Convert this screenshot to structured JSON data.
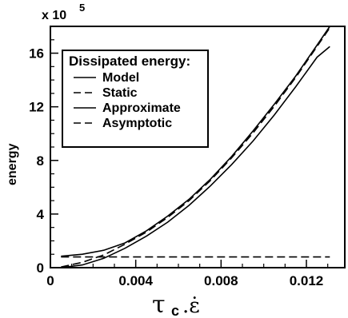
{
  "chart_data": {
    "type": "line",
    "title": "",
    "xlabel": "τ c .ε̇",
    "xlabel_parts": {
      "main": "τ",
      "sub": "c",
      "rest": ".ε̇"
    },
    "ylabel": "energy",
    "y_multiplier": "x 10",
    "y_multiplier_exp": "5",
    "xlim": [
      0,
      0.0138
    ],
    "ylim": [
      0,
      18
    ],
    "x_ticks": [
      0,
      0.004,
      0.008,
      0.012
    ],
    "x_tick_labels": [
      "0",
      "0.004",
      "0.008",
      "0.012"
    ],
    "y_ticks": [
      0,
      4,
      8,
      12,
      16
    ],
    "y_tick_labels": [
      "0",
      "4",
      "8",
      "12",
      "16"
    ],
    "legend": {
      "title": "Dissipated energy:",
      "placement": "top-left"
    },
    "series": [
      {
        "name": "Model",
        "style": "solid",
        "x": [
          0.0005,
          0.0015,
          0.0025,
          0.0035,
          0.0045,
          0.0055,
          0.0065,
          0.0075,
          0.0085,
          0.0095,
          0.0105,
          0.0115,
          0.0125,
          0.0131
        ],
        "y": [
          0.85,
          1.0,
          1.3,
          1.85,
          2.75,
          3.85,
          5.1,
          6.6,
          8.3,
          10.2,
          12.2,
          14.3,
          16.6,
          18.0
        ]
      },
      {
        "name": "Static",
        "style": "dashed",
        "x": [
          0.0005,
          0.0015,
          0.0025,
          0.0035,
          0.0045,
          0.0055,
          0.0065,
          0.0075,
          0.0085,
          0.0095,
          0.0105,
          0.0115,
          0.0125,
          0.0131
        ],
        "y": [
          0.05,
          0.4,
          0.95,
          1.75,
          2.65,
          3.75,
          5.0,
          6.5,
          8.2,
          10.05,
          12.05,
          14.2,
          16.5,
          17.9
        ]
      },
      {
        "name": "Approximate",
        "style": "solid",
        "x": [
          0.0005,
          0.0015,
          0.0025,
          0.0035,
          0.0045,
          0.0055,
          0.0065,
          0.0075,
          0.0085,
          0.0095,
          0.0105,
          0.0115,
          0.0125,
          0.0131
        ],
        "y": [
          0.0,
          0.2,
          0.7,
          1.45,
          2.35,
          3.4,
          4.65,
          6.1,
          7.7,
          9.45,
          11.4,
          13.5,
          15.7,
          16.5
        ]
      },
      {
        "name": "Asymptotic",
        "style": "dashed",
        "x": [
          0.0005,
          0.0131
        ],
        "y": [
          0.8,
          0.8
        ]
      }
    ]
  }
}
